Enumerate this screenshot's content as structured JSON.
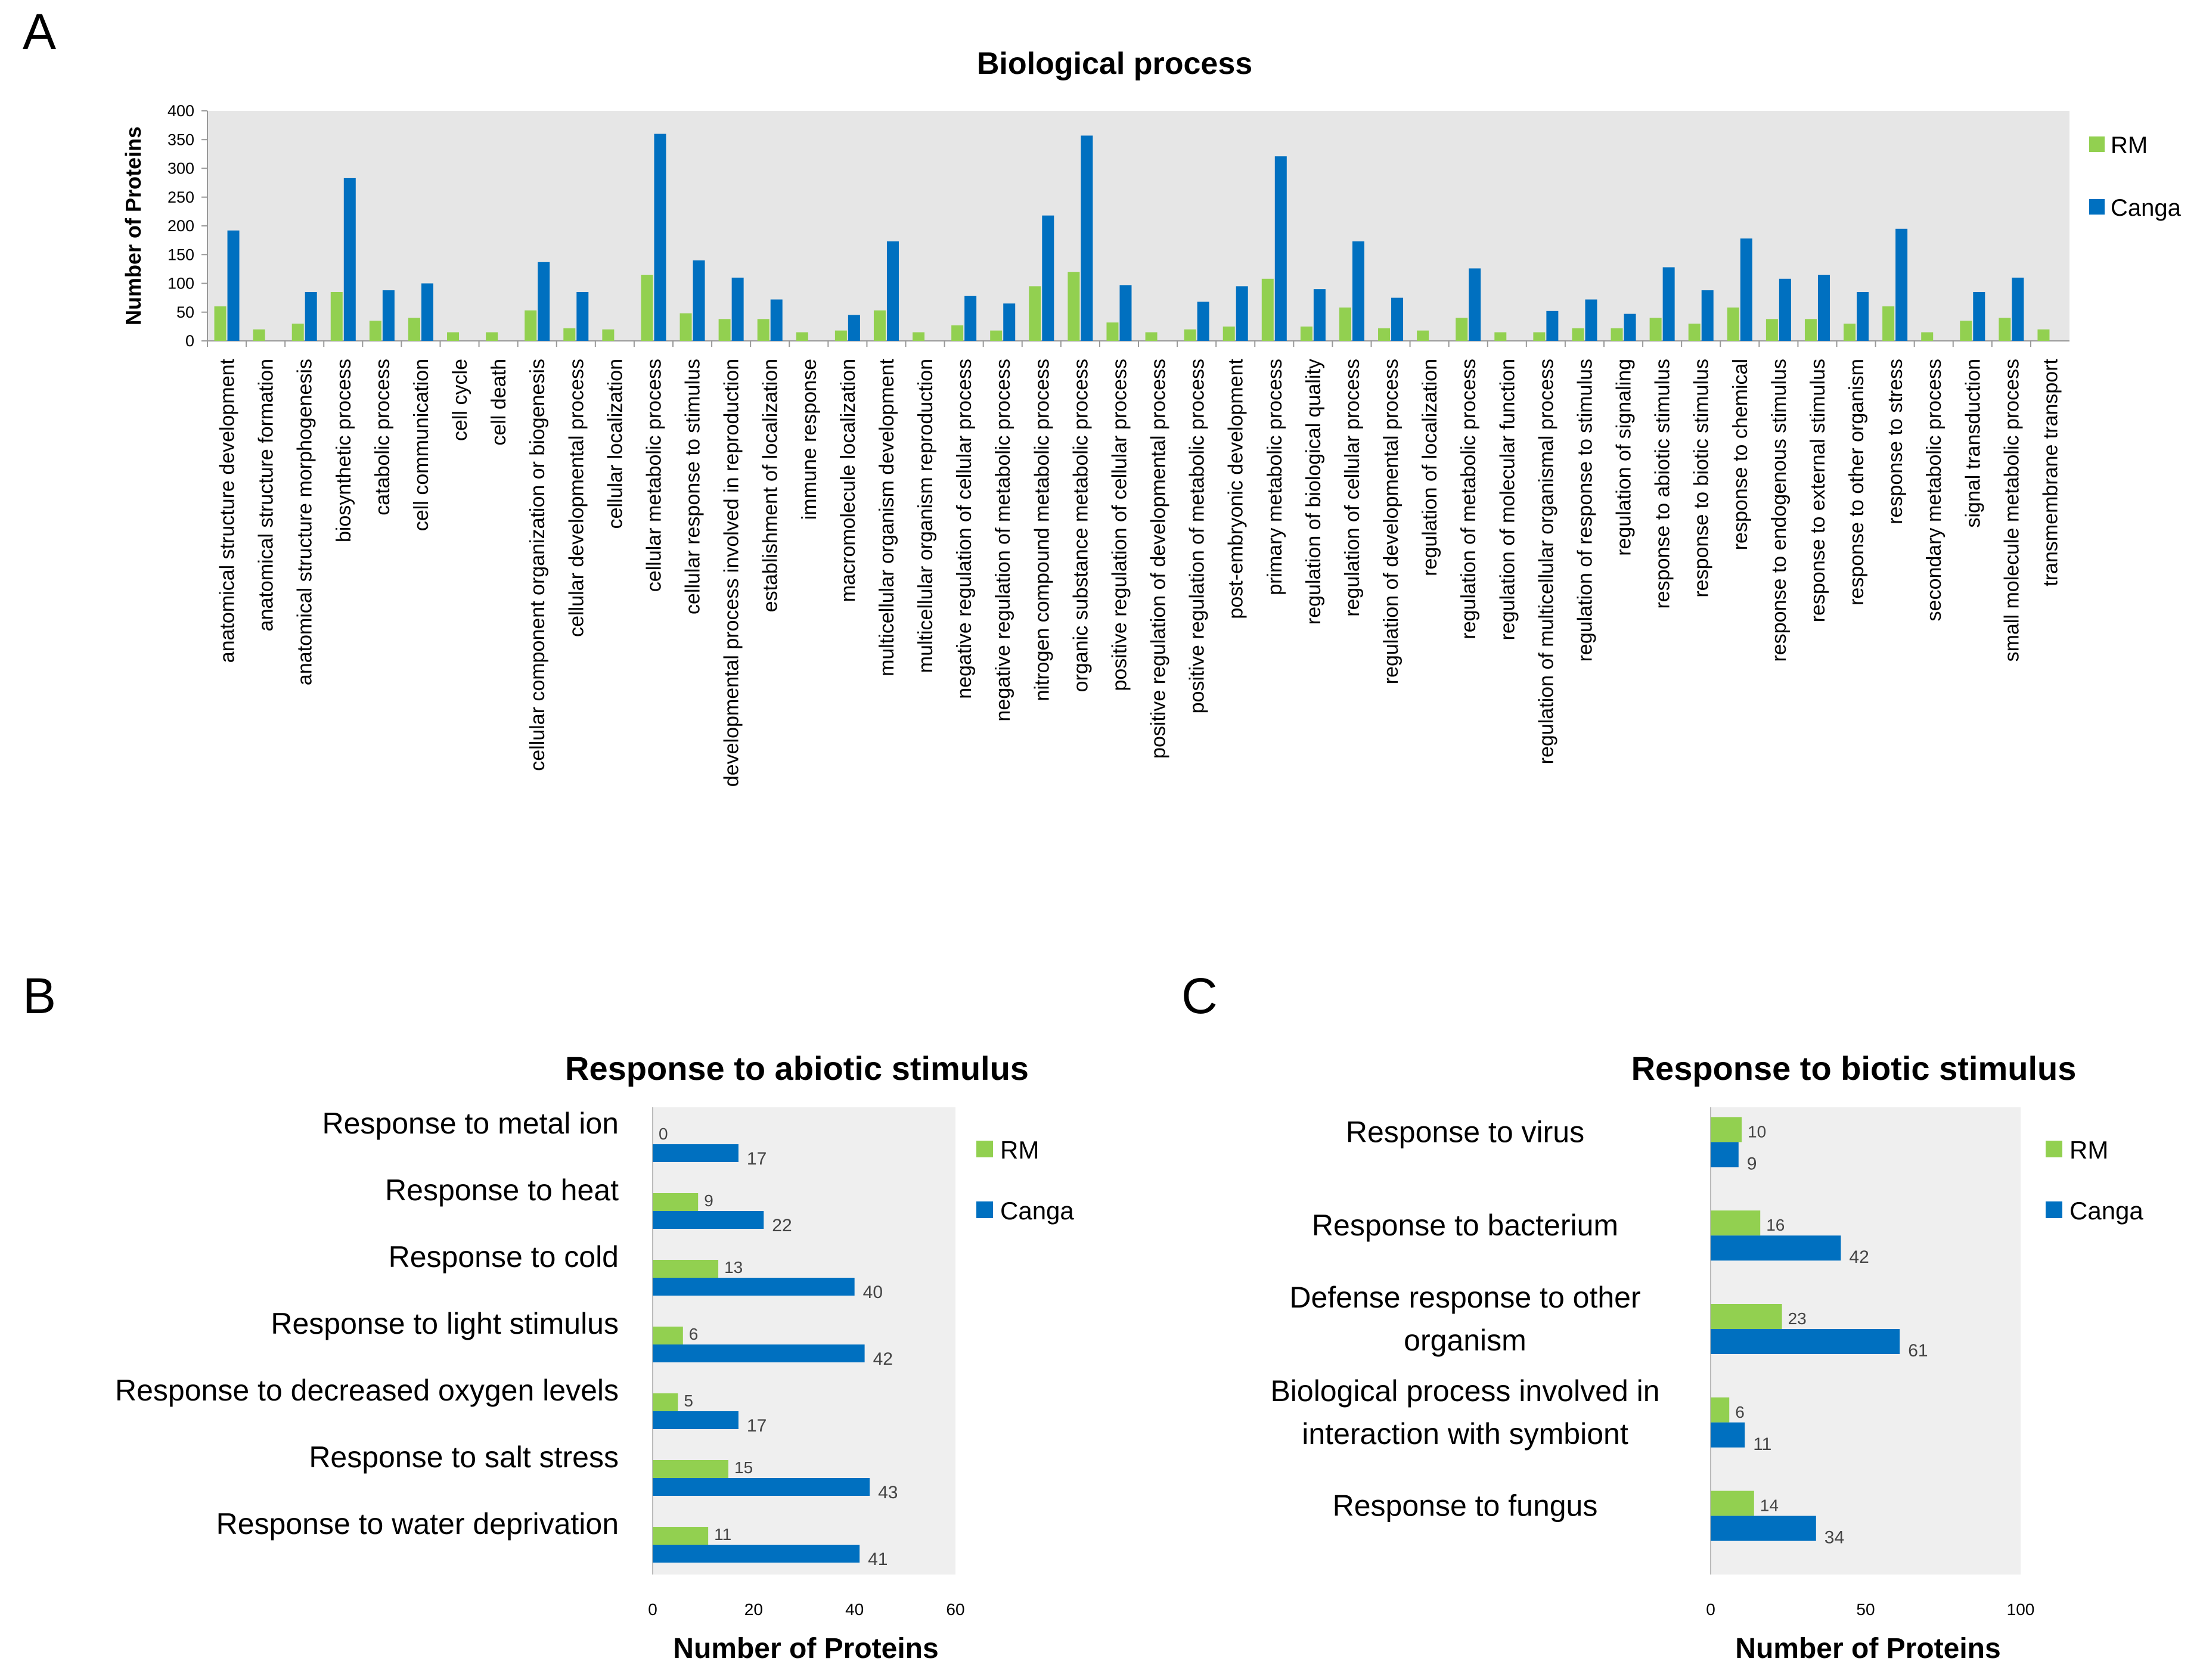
{
  "chart_data": [
    {
      "panel": "A",
      "type": "bar",
      "title": "Biological process",
      "ylabel": "Number of Proteins",
      "xlabel": "",
      "ylim": [
        0,
        400
      ],
      "yticks": [
        0,
        50,
        100,
        150,
        200,
        250,
        300,
        350,
        400
      ],
      "legend": "right",
      "categories": [
        "anatomical structure development",
        "anatomical structure formation",
        "anatomical structure morphogenesis",
        "biosynthetic process",
        "catabolic process",
        "cell communication",
        "cell cycle",
        "cell death",
        "cellular component organization or biogenesis",
        "cellular developmental process",
        "cellular localization",
        "cellular metabolic process",
        "cellular response to stimulus",
        "developmental process involved in reproduction",
        "establishment of localization",
        "immune response",
        "macromolecule localization",
        "multicellular organism development",
        "multicellular organism reproduction",
        "negative regulation of cellular process",
        "negative regulation of metabolic process",
        "nitrogen compound metabolic process",
        "organic substance metabolic process",
        "positive regulation of cellular process",
        "positive regulation of developmental process",
        "positive regulation of metabolic process",
        "post-embryonic development",
        "primary metabolic process",
        "regulation of biological quality",
        "regulation of cellular process",
        "regulation of developmental process",
        "regulation of localization",
        "regulation of metabolic process",
        "regulation of molecular function",
        "regulation of multicellular organismal process",
        "regulation of response to stimulus",
        "regulation of signaling",
        "response to abiotic stimulus",
        "response to biotic stimulus",
        "response to chemical",
        "response to endogenous stimulus",
        "response to external stimulus",
        "response to other organism",
        "response to stress",
        "secondary metabolic process",
        "signal transduction",
        "small molecule metabolic process",
        "transmembrane transport"
      ],
      "series": [
        {
          "name": "RM",
          "color": "#92d050",
          "values": [
            60,
            20,
            30,
            85,
            35,
            40,
            15,
            15,
            53,
            22,
            20,
            115,
            48,
            38,
            38,
            15,
            18,
            53,
            15,
            27,
            18,
            95,
            120,
            32,
            15,
            20,
            25,
            108,
            25,
            58,
            22,
            18,
            40,
            15,
            15,
            22,
            22,
            40,
            30,
            58,
            38,
            38,
            30,
            60,
            15,
            35,
            40,
            20
          ]
        },
        {
          "name": "Canga",
          "color": "#0070c0",
          "values": [
            192,
            0,
            85,
            283,
            88,
            100,
            0,
            0,
            137,
            85,
            0,
            360,
            140,
            110,
            72,
            0,
            45,
            173,
            0,
            78,
            65,
            218,
            357,
            97,
            0,
            68,
            95,
            321,
            90,
            173,
            75,
            0,
            126,
            0,
            52,
            72,
            47,
            128,
            88,
            178,
            108,
            115,
            85,
            195,
            0,
            85,
            110,
            0
          ]
        }
      ]
    },
    {
      "panel": "B",
      "type": "bar",
      "orientation": "horizontal",
      "title": "Response to abiotic stimulus",
      "xlabel": "Number of Proteins",
      "ylabel": "",
      "xlim": [
        0,
        60
      ],
      "xticks": [
        0,
        20,
        40,
        60
      ],
      "legend": "right",
      "categories": [
        "Response to metal ion",
        "Response to heat",
        "Response to cold",
        "Response to light stimulus",
        "Response to decreased oxygen levels",
        "Response to salt stress",
        "Response to water deprivation"
      ],
      "series": [
        {
          "name": "RM",
          "color": "#92d050",
          "values": [
            0,
            9,
            13,
            6,
            5,
            15,
            11
          ]
        },
        {
          "name": "Canga",
          "color": "#0070c0",
          "values": [
            17,
            22,
            40,
            42,
            17,
            43,
            41
          ]
        }
      ]
    },
    {
      "panel": "C",
      "type": "bar",
      "orientation": "horizontal",
      "title": "Response to biotic stimulus",
      "xlabel": "Number of Proteins",
      "ylabel": "",
      "xlim": [
        0,
        100
      ],
      "xticks": [
        0,
        50,
        100
      ],
      "legend": "right",
      "categories": [
        [
          "Response to virus"
        ],
        [
          "Response to bacterium"
        ],
        [
          "Defense response to other",
          "organism"
        ],
        [
          "Biological process involved in",
          "interaction with symbiont"
        ],
        [
          "Response to fungus"
        ]
      ],
      "series": [
        {
          "name": "RM",
          "color": "#92d050",
          "values": [
            10,
            16,
            23,
            6,
            14
          ]
        },
        {
          "name": "Canga",
          "color": "#0070c0",
          "values": [
            9,
            42,
            61,
            11,
            34
          ]
        }
      ]
    }
  ]
}
